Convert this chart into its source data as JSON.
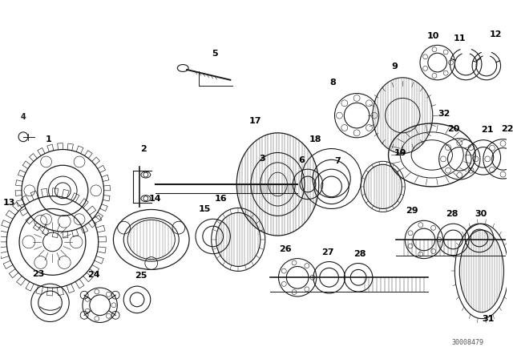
{
  "bg_color": "#ffffff",
  "line_color": "#1a1a1a",
  "diagram_id": "30008479",
  "figsize": [
    6.4,
    4.48
  ],
  "dpi": 100
}
